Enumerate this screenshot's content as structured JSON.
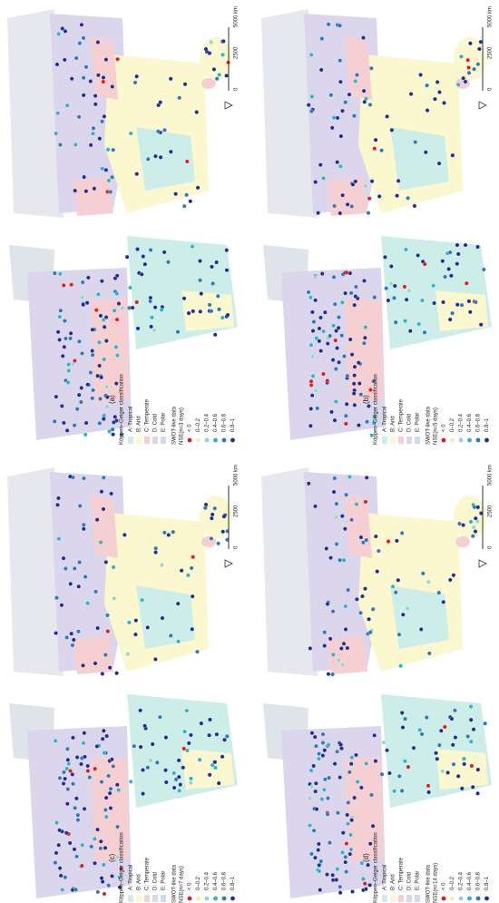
{
  "legend": {
    "koppen_title": "Köppen–Geiger classification",
    "koppen_classes": [
      {
        "label": "A: Tropical",
        "color": "#cdeee8"
      },
      {
        "label": "B: Arid",
        "color": "#fbf7cf"
      },
      {
        "label": "C: Temperate",
        "color": "#f6cfd3"
      },
      {
        "label": "D: Cold",
        "color": "#dcd6ec"
      },
      {
        "label": "E: Polar",
        "color": "#cfdcef"
      }
    ],
    "swot_title": "SWOT-like data",
    "nse_classes": [
      {
        "label": "< 0",
        "color": "#e41a1c"
      },
      {
        "label": "0–0.2",
        "color": "#f2f0b0"
      },
      {
        "label": "0.2–0.4",
        "color": "#8fd9c8"
      },
      {
        "label": "0.4–0.6",
        "color": "#2bb3c8"
      },
      {
        "label": "0.6–0.8",
        "color": "#2a7ab8"
      },
      {
        "label": "0.8–1",
        "color": "#1f2f8f"
      }
    ]
  },
  "scale_bar": [
    "0",
    "2500",
    "5000 km"
  ],
  "panels": [
    {
      "label": "(a)",
      "nse_title": "NSE(n=3 days)"
    },
    {
      "label": "(b)",
      "nse_title": "NSE(n=5 days)"
    },
    {
      "label": "(c)",
      "nse_title": "NSE(n=7 days)"
    },
    {
      "label": "(d)",
      "nse_title": "NSE(n=14 days)"
    }
  ]
}
